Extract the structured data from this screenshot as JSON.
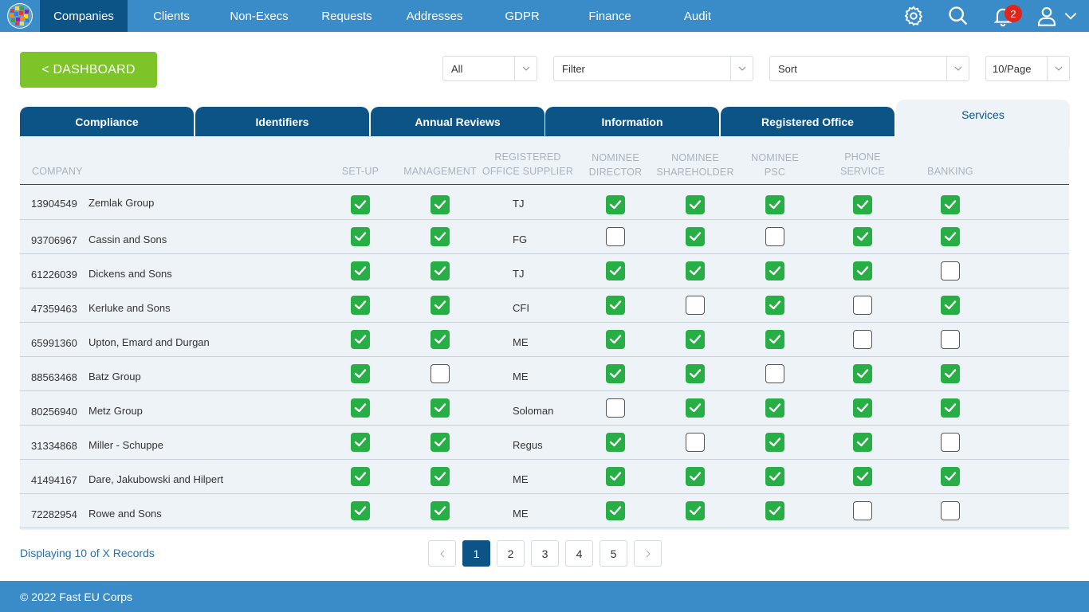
{
  "nav": {
    "logo_icon": "globe-logo-icon",
    "items": [
      {
        "label": "Companies",
        "active": true
      },
      {
        "label": "Clients"
      },
      {
        "label": "Non-Execs"
      },
      {
        "label": "Requests"
      },
      {
        "label": "Addresses"
      },
      {
        "label": "GDPR"
      },
      {
        "label": "Finance"
      },
      {
        "label": "Audit"
      }
    ],
    "notification_count": "2",
    "icons": [
      "gear-icon",
      "search-icon",
      "bell-icon",
      "user-icon",
      "chevron-down-icon"
    ]
  },
  "toolbar": {
    "dashboard_label": "< DASHBOARD",
    "scope_select": "All",
    "filter_select": "Filter",
    "sort_select": "Sort",
    "page_size_select": "10/Page"
  },
  "tabs": [
    {
      "label": "Compliance"
    },
    {
      "label": "Identifiers"
    },
    {
      "label": "Annual Reviews"
    },
    {
      "label": "Information"
    },
    {
      "label": "Registered Office"
    },
    {
      "label": "Services",
      "active": true
    }
  ],
  "table": {
    "headers": {
      "company": "COMPANY",
      "setup": "SET-UP",
      "management": "MANAGEMENT",
      "ros_line1": "REGISTERED",
      "ros_line2": "OFFICE SUPPLIER",
      "nd_line1": "NOMINEE",
      "nd_line2": "DIRECTOR",
      "ns_line1": "NOMINEE",
      "ns_line2": "SHAREHOLDER",
      "np_line1": "NOMINEE",
      "np_line2": "PSC",
      "ps_line1": "PHONE",
      "ps_line2": "SERVICE",
      "banking": "BANKING"
    },
    "rows": [
      {
        "number": "13904549",
        "name": "Zemlak Group",
        "supplier": "TJ",
        "setup": true,
        "management": true,
        "nominee_director": true,
        "nominee_shareholder": true,
        "nominee_psc": true,
        "phone_service": true,
        "banking": true
      },
      {
        "number": "93706967",
        "name": "Cassin and Sons",
        "supplier": "FG",
        "setup": true,
        "management": true,
        "nominee_director": false,
        "nominee_shareholder": true,
        "nominee_psc": false,
        "phone_service": true,
        "banking": true
      },
      {
        "number": "61226039",
        "name": "Dickens and Sons",
        "supplier": "TJ",
        "setup": true,
        "management": true,
        "nominee_director": true,
        "nominee_shareholder": true,
        "nominee_psc": true,
        "phone_service": true,
        "banking": false
      },
      {
        "number": "47359463",
        "name": "Kerluke and Sons",
        "supplier": "CFI",
        "setup": true,
        "management": true,
        "nominee_director": true,
        "nominee_shareholder": false,
        "nominee_psc": true,
        "phone_service": false,
        "banking": true
      },
      {
        "number": "65991360",
        "name": "Upton, Emard and Durgan",
        "supplier": "ME",
        "setup": true,
        "management": true,
        "nominee_director": true,
        "nominee_shareholder": true,
        "nominee_psc": true,
        "phone_service": false,
        "banking": false
      },
      {
        "number": "88563468",
        "name": "Batz Group",
        "supplier": "ME",
        "setup": true,
        "management": false,
        "nominee_director": true,
        "nominee_shareholder": true,
        "nominee_psc": false,
        "phone_service": true,
        "banking": true
      },
      {
        "number": "80256940",
        "name": "Metz Group",
        "supplier": "Soloman",
        "setup": true,
        "management": true,
        "nominee_director": false,
        "nominee_shareholder": true,
        "nominee_psc": true,
        "phone_service": true,
        "banking": true
      },
      {
        "number": "31334868",
        "name": "Miller - Schuppe",
        "supplier": "Regus",
        "setup": true,
        "management": true,
        "nominee_director": true,
        "nominee_shareholder": false,
        "nominee_psc": true,
        "phone_service": true,
        "banking": false
      },
      {
        "number": "41494167",
        "name": "Dare, Jakubowski and Hilpert",
        "supplier": "ME",
        "setup": true,
        "management": true,
        "nominee_director": true,
        "nominee_shareholder": true,
        "nominee_psc": true,
        "phone_service": true,
        "banking": true
      },
      {
        "number": "72282954",
        "name": "Rowe and Sons",
        "supplier": "ME",
        "setup": true,
        "management": true,
        "nominee_director": true,
        "nominee_shareholder": true,
        "nominee_psc": true,
        "phone_service": false,
        "banking": false
      }
    ]
  },
  "pagination": {
    "records_text": "Displaying 10 of X Records",
    "pages": [
      "1",
      "2",
      "3",
      "4",
      "5"
    ],
    "current": "1"
  },
  "footer": {
    "copyright": "© 2022 Fast EU Corps"
  },
  "colors": {
    "nav": "#3a8cc8",
    "nav_active": "#0c5486",
    "dashboard_button": "#7cc427",
    "checkbox_checked": "#27ae45",
    "badge": "#e0261b"
  }
}
